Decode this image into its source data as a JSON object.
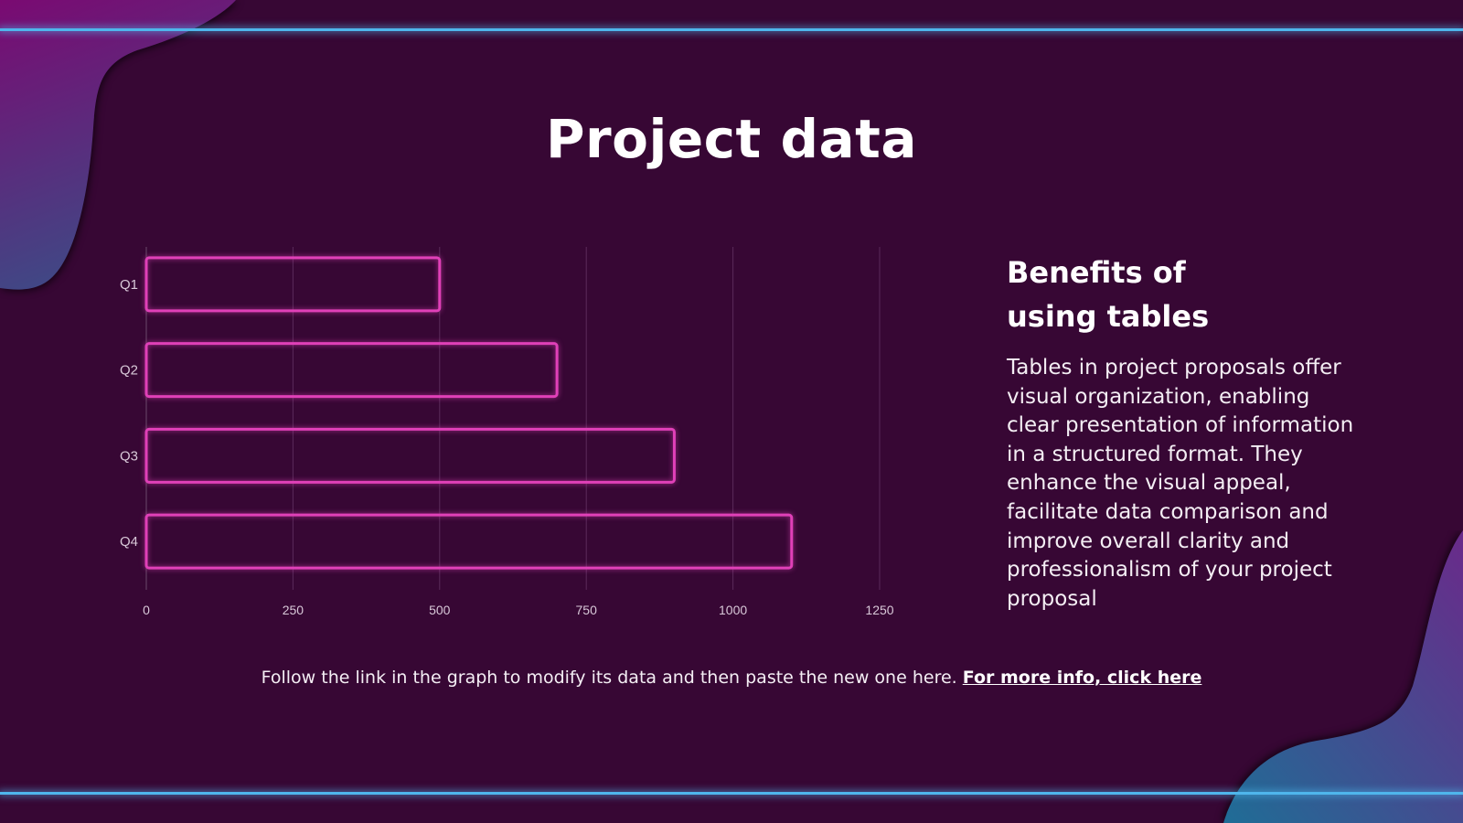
{
  "title": "Project data",
  "side": {
    "heading_line1": "Benefits of",
    "heading_line2": "using tables",
    "body": "Tables in project proposals offer visual organization, enabling clear presentation of information in a structured format. They enhance the visual appeal, facilitate data comparison and improve overall clarity and professionalism of your project proposal"
  },
  "footer": {
    "text": "Follow the link in the graph to modify its data and then paste the new one here.",
    "link": "For more info, click here"
  },
  "colors": {
    "background": "#370734",
    "bar_outline": "#e040b8",
    "accent_line": "#4fb6ec"
  },
  "chart_data": {
    "type": "bar",
    "orientation": "horizontal",
    "categories": [
      "Q1",
      "Q2",
      "Q3",
      "Q4"
    ],
    "values": [
      500,
      700,
      900,
      1100
    ],
    "xlim": [
      0,
      1250
    ],
    "xticks": [
      "0",
      "250",
      "500",
      "750",
      "1000",
      "1250"
    ],
    "grid": true,
    "title": "",
    "xlabel": "",
    "ylabel": ""
  }
}
